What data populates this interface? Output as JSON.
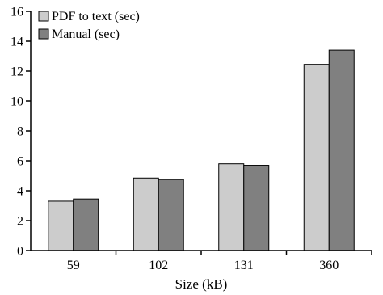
{
  "chart_data": {
    "type": "bar",
    "title": "",
    "xlabel": "Size (kB)",
    "ylabel": "",
    "categories": [
      "59",
      "102",
      "131",
      "360"
    ],
    "series": [
      {
        "name": "PDF to text (sec)",
        "values": [
          3.3,
          4.85,
          5.8,
          12.45
        ],
        "color": "#cccccc"
      },
      {
        "name": "Manual (sec)",
        "values": [
          3.45,
          4.75,
          5.7,
          13.4
        ],
        "color": "#808080"
      }
    ],
    "ylim": [
      0,
      16
    ],
    "yticks": [
      "0",
      "2",
      "4",
      "6",
      "8",
      "10",
      "12",
      "14",
      "16"
    ],
    "grid": false,
    "legend_position": "top-left"
  }
}
